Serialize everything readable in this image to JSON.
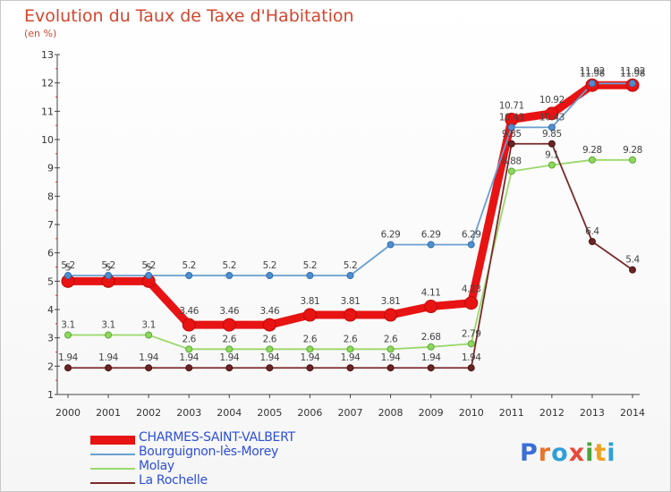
{
  "header": {
    "title": "Evolution du Taux de Taxe d'Habitation",
    "subtitle": "(en %)"
  },
  "logo": {
    "text": "Proxiti",
    "letter_colors": [
      "#3a6fd6",
      "#e8732a",
      "#2f9fd8",
      "#e84a3a",
      "#4aa43a",
      "#f0a020",
      "#2f9fd8"
    ]
  },
  "chart_data": {
    "type": "line",
    "x": [
      "2000",
      "2001",
      "2002",
      "2003",
      "2004",
      "2005",
      "2006",
      "2007",
      "2008",
      "2009",
      "2010",
      "2011",
      "2012",
      "2013",
      "2014"
    ],
    "ylim": [
      1,
      13
    ],
    "yticks": [
      "1",
      "2",
      "3",
      "4",
      "5",
      "6",
      "7",
      "8",
      "9",
      "10",
      "11",
      "12",
      "13"
    ],
    "grid": false,
    "legend_position": "bottom-left",
    "series": [
      {
        "name": "CHARMES-SAINT-VALBERT",
        "color": "#e81313",
        "values": [
          5,
          5,
          5,
          3.46,
          3.46,
          3.46,
          3.81,
          3.81,
          3.81,
          4.11,
          4.23,
          10.71,
          10.92,
          11.92,
          11.92
        ],
        "labels": [
          "5",
          "5",
          "5",
          "3.46",
          "3.46",
          "3.46",
          "3.81",
          "3.81",
          "3.81",
          "4.11",
          "4.23",
          "10.71",
          "10.92",
          "11.92",
          "11.92"
        ]
      },
      {
        "name": "Bourguignon-lès-Morey",
        "color": "#6a9fd0",
        "values": [
          5.2,
          5.2,
          5.2,
          5.2,
          5.2,
          5.2,
          5.2,
          5.2,
          6.29,
          6.29,
          6.29,
          10.43,
          10.43,
          11.98,
          11.98
        ],
        "labels": [
          "5.2",
          "5.2",
          "5.2",
          "5.2",
          "5.2",
          "5.2",
          "5.2",
          "5.2",
          "6.29",
          "6.29",
          "6.29",
          "10.43",
          "10.43",
          "11.98",
          "11.98"
        ]
      },
      {
        "name": "Molay",
        "color": "#9ad86a",
        "values": [
          3.1,
          3.1,
          3.1,
          2.6,
          2.6,
          2.6,
          2.6,
          2.6,
          2.6,
          2.68,
          2.79,
          8.88,
          9.1,
          9.28,
          9.28
        ],
        "labels": [
          "3.1",
          "3.1",
          "3.1",
          "2.6",
          "2.6",
          "2.6",
          "2.6",
          "2.6",
          "2.6",
          "2.68",
          "2.79",
          "8.88",
          "9.1",
          "9.28",
          "9.28"
        ]
      },
      {
        "name": "La Rochelle",
        "color": "#7a2a2a",
        "values": [
          1.94,
          1.94,
          1.94,
          1.94,
          1.94,
          1.94,
          1.94,
          1.94,
          1.94,
          1.94,
          1.94,
          9.85,
          9.85,
          6.4,
          5.4
        ],
        "labels": [
          "1.94",
          "1.94",
          "1.94",
          "1.94",
          "1.94",
          "1.94",
          "1.94",
          "1.94",
          "1.94",
          "1.94",
          "1.94",
          "9.85",
          "9.85",
          "6.4",
          "5.4"
        ]
      }
    ]
  }
}
